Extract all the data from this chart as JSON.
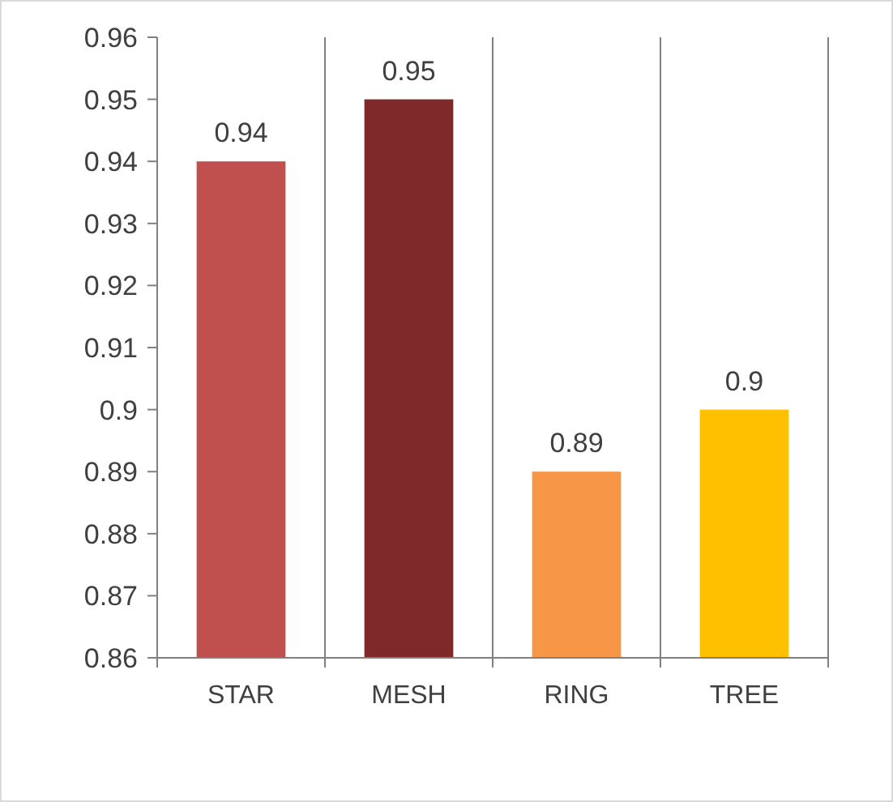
{
  "chart_data": {
    "type": "bar",
    "categories": [
      "STAR",
      "MESH",
      "RING",
      "TREE"
    ],
    "values": [
      0.94,
      0.95,
      0.89,
      0.9
    ],
    "colors": [
      "#c0504d",
      "#7f2a2a",
      "#f79646",
      "#ffc000"
    ],
    "ylim": [
      0.86,
      0.96
    ],
    "yticks": [
      0.86,
      0.87,
      0.88,
      0.89,
      0.9,
      0.91,
      0.92,
      0.93,
      0.94,
      0.95,
      0.96
    ],
    "grid": "x",
    "data_labels": true
  }
}
